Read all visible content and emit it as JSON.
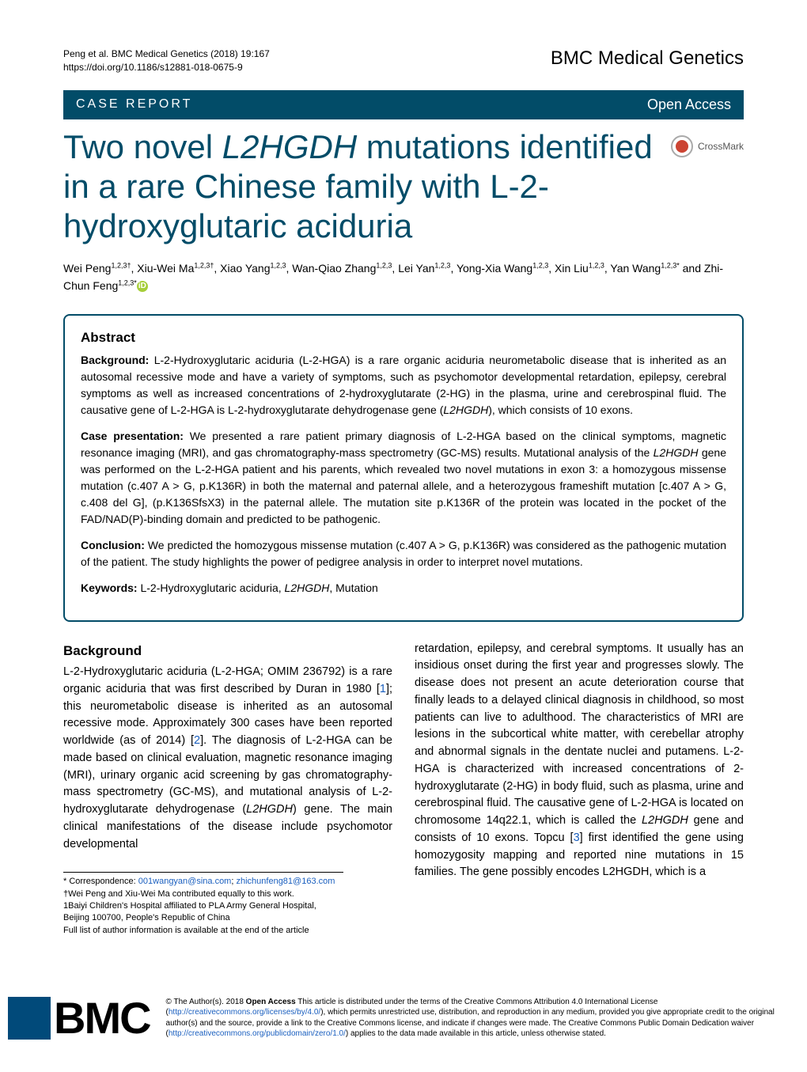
{
  "header": {
    "citation_line1": "Peng et al. BMC Medical Genetics  (2018) 19:167",
    "citation_line2": "https://doi.org/10.1186/s12881-018-0675-9",
    "journal_name": "BMC Medical Genetics"
  },
  "banner": {
    "article_type": "CASE REPORT",
    "open_access": "Open Access"
  },
  "crossmark_label": "CrossMark",
  "title_html": "Two novel <i>L2HGDH</i> mutations identified in a rare Chinese family with L-2-hydroxyglutaric aciduria",
  "authors_html": "Wei Peng<sup>1,2,3†</sup>, Xiu-Wei Ma<sup>1,2,3†</sup>, Xiao Yang<sup>1,2,3</sup>, Wan-Qiao Zhang<sup>1,2,3</sup>, Lei Yan<sup>1,2,3</sup>, Yong-Xia Wang<sup>1,2,3</sup>, Xin Liu<sup>1,2,3</sup>, Yan Wang<sup>1,2,3*</sup> and Zhi-Chun Feng<sup>1,2,3*</sup>",
  "abstract": {
    "heading": "Abstract",
    "background_label": "Background:",
    "background_html": " L-2-Hydroxyglutaric aciduria (L-2-HGA) is a rare organic aciduria neurometabolic disease that is inherited as an autosomal recessive mode and have a variety of symptoms, such as psychomotor developmental retardation, epilepsy, cerebral symptoms as well as increased concentrations of 2-hydroxyglutarate (2-HG) in the plasma, urine and cerebrospinal fluid. The causative gene of L-2-HGA is L-2-hydroxyglutarate dehydrogenase gene (<i>L2HGDH</i>), which consists of 10 exons.",
    "case_label": "Case presentation:",
    "case_html": " We presented a rare patient primary diagnosis of L-2-HGA based on the clinical symptoms, magnetic resonance imaging (MRI), and gas chromatography-mass spectrometry (GC-MS) results. Mutational analysis of the <i>L2HGDH</i> gene was performed on the L-2-HGA patient and his parents, which revealed two novel mutations in exon 3: a homozygous missense mutation (c.407 A > G, p.K136R) in both the maternal and paternal allele, and a heterozygous frameshift mutation [c.407 A > G, c.408 del G], (p.K136SfsX3) in the paternal allele. The mutation site p.K136R of the protein was located in the pocket of the FAD/NAD(P)-binding domain and predicted to be pathogenic.",
    "conclusion_label": "Conclusion:",
    "conclusion_html": " We predicted the homozygous missense mutation (c.407 A > G, p.K136R) was considered as the pathogenic mutation of the patient. The study highlights the power of pedigree analysis in order to interpret novel mutations.",
    "keywords_label": "Keywords:",
    "keywords_html": " L-2-Hydroxyglutaric aciduria, <i>L2HGDH</i>, Mutation"
  },
  "body": {
    "background_heading": "Background",
    "col1_html": "L-2-Hydroxyglutaric aciduria (L-2-HGA; OMIM 236792) is a rare organic aciduria that was first described by Duran in 1980 [<a href=\"#\">1</a>]; this neurometabolic disease is inherited as an autosomal recessive mode. Approximately 300 cases have been reported worldwide (as of 2014) [<a href=\"#\">2</a>]. The diagnosis of L-2-HGA can be made based on clinical evaluation, magnetic resonance imaging (MRI), urinary organic acid screening by gas chromatography-mass spectrometry (GC-MS), and mutational analysis of L-2-hydroxyglutarate dehydrogenase (<i>L2HGDH</i>) gene. The main clinical manifestations of the disease include psychomotor developmental",
    "col2_html": "retardation, epilepsy, and cerebral symptoms. It usually has an insidious onset during the first year and progresses slowly. The disease does not present an acute deterioration course that finally leads to a delayed clinical diagnosis in childhood, so most patients can live to adulthood. The characteristics of MRI are lesions in the subcortical white matter, with cerebellar atrophy and abnormal signals in the dentate nuclei and putamens. L-2-HGA is characterized with increased concentrations of 2-hydroxyglutarate (2-HG) in body fluid, such as plasma, urine and cerebrospinal fluid. The causative gene of L-2-HGA is located on chromosome 14q22.1, which is called the <i>L2HGDH</i> gene and consists of 10 exons. Topcu [<a href=\"#\">3</a>] first identified the gene using homozygosity mapping and reported nine mutations in 15 families. The gene possibly encodes L2HGDH, which is a"
  },
  "correspondence": {
    "line1_prefix": "* Correspondence: ",
    "email1": "001wangyan@sina.com",
    "email2": "zhichunfeng81@163.com",
    "line2": "†Wei Peng and Xiu-Wei Ma contributed equally to this work.",
    "line3": "1Baiyi Children's Hospital affiliated to PLA Army General Hospital, Beijing 100700, People's Republic of China",
    "line4": "Full list of author information is available at the end of the article"
  },
  "footer": {
    "bmc": "BMC",
    "license_html": "© The Author(s). 2018 <strong>Open Access</strong> This article is distributed under the terms of the Creative Commons Attribution 4.0 International License (<a href=\"#\">http://creativecommons.org/licenses/by/4.0/</a>), which permits unrestricted use, distribution, and reproduction in any medium, provided you give appropriate credit to the original author(s) and the source, provide a link to the Creative Commons license, and indicate if changes were made. The Creative Commons Public Domain Dedication waiver (<a href=\"#\">http://creativecommons.org/publicdomain/zero/1.0/</a>) applies to the data made available in this article, unless otherwise stated."
  },
  "colors": {
    "banner_bg": "#024c68",
    "title_color": "#024c68",
    "link_color": "#1a5fbf",
    "orcid_bg": "#a6ce39"
  }
}
